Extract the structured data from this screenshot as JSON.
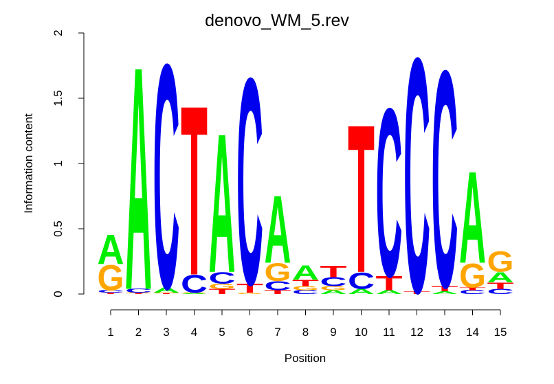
{
  "chart_data": {
    "type": "sequence-logo",
    "title": "denovo_WM_5.rev",
    "xlabel": "Position",
    "ylabel": "Information content",
    "ylim": [
      0,
      2
    ],
    "yticks": [
      "0",
      "0.5",
      "1",
      "1.5",
      "2"
    ],
    "x": [
      "1",
      "2",
      "3",
      "4",
      "5",
      "6",
      "7",
      "8",
      "9",
      "10",
      "11",
      "12",
      "13",
      "14",
      "15"
    ],
    "colors": {
      "A": "#00ee00",
      "C": "#0000ee",
      "G": "#ffa500",
      "T": "#ff0000"
    },
    "positions": [
      {
        "position": 1,
        "letters": [
          {
            "base": "T",
            "height": 0.01
          },
          {
            "base": "C",
            "height": 0.02
          },
          {
            "base": "G",
            "height": 0.2
          },
          {
            "base": "A",
            "height": 0.23
          }
        ]
      },
      {
        "position": 2,
        "letters": [
          {
            "base": "T",
            "height": 0.005
          },
          {
            "base": "G",
            "height": 0.005
          },
          {
            "base": "C",
            "height": 0.03
          },
          {
            "base": "A",
            "height": 1.75
          }
        ]
      },
      {
        "position": 3,
        "letters": [
          {
            "base": "T",
            "height": 0.005
          },
          {
            "base": "G",
            "height": 0.005
          },
          {
            "base": "A",
            "height": 0.04
          },
          {
            "base": "C",
            "height": 1.76
          }
        ]
      },
      {
        "position": 4,
        "letters": [
          {
            "base": "A",
            "height": 0.005
          },
          {
            "base": "G",
            "height": 0.005
          },
          {
            "base": "C",
            "height": 0.14
          },
          {
            "base": "T",
            "height": 1.33
          }
        ]
      },
      {
        "position": 5,
        "letters": [
          {
            "base": "T",
            "height": 0.04
          },
          {
            "base": "G",
            "height": 0.04
          },
          {
            "base": "C",
            "height": 0.09
          },
          {
            "base": "A",
            "height": 1.09
          }
        ]
      },
      {
        "position": 6,
        "letters": [
          {
            "base": "G",
            "height": 0.01
          },
          {
            "base": "T",
            "height": 0.07
          },
          {
            "base": "C",
            "height": 1.62
          }
        ]
      },
      {
        "position": 7,
        "letters": [
          {
            "base": "T",
            "height": 0.03
          },
          {
            "base": "C",
            "height": 0.07
          },
          {
            "base": "G",
            "height": 0.14
          },
          {
            "base": "A",
            "height": 0.53
          }
        ]
      },
      {
        "position": 8,
        "letters": [
          {
            "base": "C",
            "height": 0.03
          },
          {
            "base": "G",
            "height": 0.03
          },
          {
            "base": "T",
            "height": 0.05
          },
          {
            "base": "A",
            "height": 0.11
          }
        ]
      },
      {
        "position": 9,
        "letters": [
          {
            "base": "A",
            "height": 0.03
          },
          {
            "base": "G",
            "height": 0.03
          },
          {
            "base": "C",
            "height": 0.07
          },
          {
            "base": "T",
            "height": 0.09
          }
        ]
      },
      {
        "position": 10,
        "letters": [
          {
            "base": "A",
            "height": 0.04
          },
          {
            "base": "C",
            "height": 0.13
          },
          {
            "base": "T",
            "height": 1.16
          }
        ]
      },
      {
        "position": 11,
        "letters": [
          {
            "base": "A",
            "height": 0.03
          },
          {
            "base": "T",
            "height": 0.11
          },
          {
            "base": "C",
            "height": 1.32
          }
        ]
      },
      {
        "position": 12,
        "letters": [
          {
            "base": "T",
            "height": 0.02
          },
          {
            "base": "C",
            "height": 1.84
          }
        ]
      },
      {
        "position": 13,
        "letters": [
          {
            "base": "A",
            "height": 0.02
          },
          {
            "base": "T",
            "height": 0.04
          },
          {
            "base": "C",
            "height": 1.7
          }
        ]
      },
      {
        "position": 14,
        "letters": [
          {
            "base": "C",
            "height": 0.03
          },
          {
            "base": "T",
            "height": 0.02
          },
          {
            "base": "G",
            "height": 0.19
          },
          {
            "base": "A",
            "height": 0.72
          }
        ]
      },
      {
        "position": 15,
        "letters": [
          {
            "base": "C",
            "height": 0.04
          },
          {
            "base": "T",
            "height": 0.05
          },
          {
            "base": "A",
            "height": 0.08
          },
          {
            "base": "G",
            "height": 0.16
          }
        ]
      }
    ]
  }
}
